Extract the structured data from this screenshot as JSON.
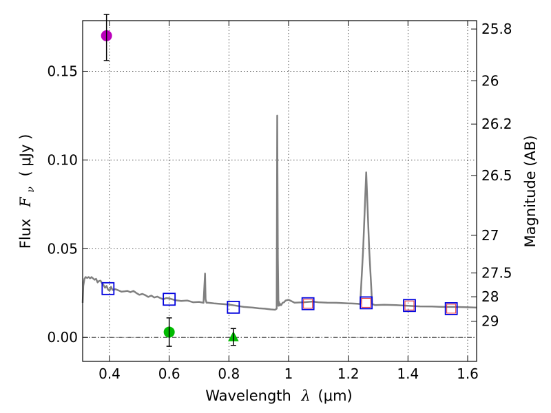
{
  "chart_data": {
    "type": "line",
    "xlabel_prefix": "Wavelength",
    "xlabel_symbol": "λ",
    "xlabel_unit": "(μm)",
    "ylabel_prefix": "Flux",
    "ylabel_symbol": "F",
    "ylabel_subscript": "ν",
    "ylabel_unit": "( μJy )",
    "y2label": "Magnitude (AB)",
    "xlim": [
      0.31,
      1.63
    ],
    "ylim": [
      -0.0135,
      0.1785
    ],
    "x_ticks": [
      0.4,
      0.6,
      0.8,
      1.0,
      1.2,
      1.4,
      1.6
    ],
    "x_tick_labels": [
      "0.4",
      "0.6",
      "0.8",
      "1",
      "1.2",
      "1.4",
      "1.6"
    ],
    "y_ticks": [
      0.0,
      0.05,
      0.1,
      0.15
    ],
    "y_tick_labels": [
      "0.00",
      "0.05",
      "0.10",
      "0.15"
    ],
    "y2_ticks": [
      25.8,
      26,
      26.2,
      26.5,
      27,
      27.5,
      28,
      29
    ],
    "y2_tick_labels": [
      "25.8",
      "26",
      "26.2",
      "26.5",
      "27",
      "27.5",
      "28",
      "29"
    ],
    "grid": true,
    "colors": {
      "spectrum": "#808080",
      "model_box": "#0000dd",
      "model_box_inner": "#ee3333",
      "uv_point": "#bb00bb",
      "optical_point": "#00bb00",
      "errorbar": "#000000"
    },
    "spectrum": {
      "x": [
        0.31,
        0.312,
        0.316,
        0.32,
        0.325,
        0.33,
        0.335,
        0.34,
        0.345,
        0.35,
        0.355,
        0.36,
        0.365,
        0.37,
        0.375,
        0.38,
        0.385,
        0.39,
        0.395,
        0.4,
        0.405,
        0.41,
        0.42,
        0.43,
        0.44,
        0.45,
        0.46,
        0.47,
        0.48,
        0.49,
        0.5,
        0.51,
        0.52,
        0.53,
        0.54,
        0.55,
        0.56,
        0.57,
        0.58,
        0.59,
        0.6,
        0.62,
        0.64,
        0.66,
        0.68,
        0.7,
        0.715,
        0.72,
        0.722,
        0.725,
        0.73,
        0.75,
        0.78,
        0.8,
        0.82,
        0.85,
        0.88,
        0.9,
        0.92,
        0.94,
        0.955,
        0.96,
        0.962,
        0.964,
        0.966,
        0.968,
        0.97,
        0.972,
        0.975,
        0.98,
        0.985,
        0.99,
        1.0,
        1.02,
        1.05,
        1.08,
        1.1,
        1.13,
        1.16,
        1.2,
        1.23,
        1.24,
        1.25,
        1.26,
        1.27,
        1.28,
        1.29,
        1.32,
        1.36,
        1.4,
        1.44,
        1.48,
        1.52,
        1.56,
        1.6,
        1.63
      ],
      "y": [
        0.0195,
        0.029,
        0.033,
        0.034,
        0.0335,
        0.034,
        0.0333,
        0.034,
        0.0332,
        0.0325,
        0.033,
        0.031,
        0.0318,
        0.032,
        0.0305,
        0.0295,
        0.028,
        0.029,
        0.027,
        0.0262,
        0.0285,
        0.0268,
        0.0272,
        0.0265,
        0.0258,
        0.026,
        0.0262,
        0.0255,
        0.0262,
        0.025,
        0.024,
        0.0245,
        0.0238,
        0.0228,
        0.0236,
        0.0225,
        0.023,
        0.0222,
        0.0215,
        0.0222,
        0.022,
        0.021,
        0.0205,
        0.0208,
        0.0198,
        0.02,
        0.0195,
        0.036,
        0.0215,
        0.0196,
        0.0196,
        0.0192,
        0.0188,
        0.0185,
        0.018,
        0.0172,
        0.0168,
        0.0164,
        0.0162,
        0.0158,
        0.0156,
        0.0162,
        0.125,
        0.045,
        0.0178,
        0.02,
        0.018,
        0.0188,
        0.0182,
        0.0195,
        0.0198,
        0.0208,
        0.0212,
        0.0196,
        0.0198,
        0.0202,
        0.0198,
        0.0196,
        0.0195,
        0.0192,
        0.019,
        0.0188,
        0.05,
        0.093,
        0.05,
        0.0188,
        0.0182,
        0.0184,
        0.0182,
        0.0178,
        0.0175,
        0.0174,
        0.0172,
        0.0172,
        0.017,
        0.0168
      ]
    },
    "model_boxes": [
      {
        "x": 0.395,
        "y": 0.0275,
        "inner": false
      },
      {
        "x": 0.6,
        "y": 0.0215,
        "inner": false
      },
      {
        "x": 0.815,
        "y": 0.017,
        "inner": false
      },
      {
        "x": 1.065,
        "y": 0.019,
        "inner": true
      },
      {
        "x": 1.26,
        "y": 0.0195,
        "inner": true
      },
      {
        "x": 1.405,
        "y": 0.018,
        "inner": true
      },
      {
        "x": 1.545,
        "y": 0.0162,
        "inner": true
      }
    ],
    "measured_points": [
      {
        "x": 0.39,
        "y": 0.17,
        "err_low": 0.014,
        "err_high": 0.012,
        "marker": "circle",
        "color": "#bb00bb"
      },
      {
        "x": 0.6,
        "y": 0.003,
        "err_low": 0.008,
        "err_high": 0.008,
        "marker": "circle",
        "color": "#00bb00"
      },
      {
        "x": 0.815,
        "y": 0.0,
        "err_low": 0.0045,
        "err_high": 0.005,
        "marker": "triangle",
        "color": "#00bb00"
      }
    ]
  }
}
